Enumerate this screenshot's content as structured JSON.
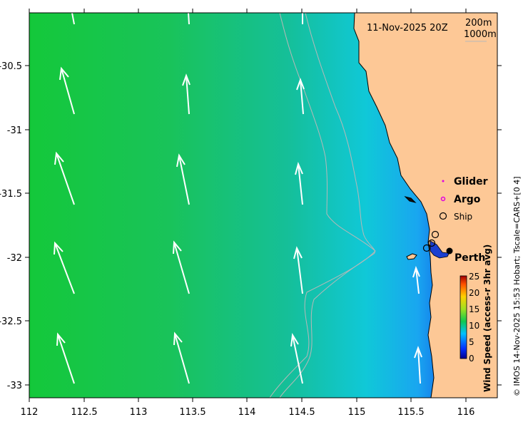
{
  "map": {
    "title": "11-Nov-2025 20Z",
    "contours": [
      "200m",
      "1000m"
    ],
    "x_ticks": [
      "112",
      "112.5",
      "113",
      "113.5",
      "114",
      "114.5",
      "115",
      "115.5",
      "116"
    ],
    "y_ticks": [
      "-30.5",
      "-31",
      "-31.5",
      "-32",
      "-32.5",
      "-33"
    ],
    "legend": {
      "glider": "Glider",
      "argo": "Argo",
      "ship": "Ship"
    },
    "city": "Perth",
    "colorbar": {
      "label": "Wind Speed (access-r 3hr avg)",
      "ticks": [
        "25",
        "20",
        "15",
        "10",
        "5",
        "0"
      ],
      "min": 0,
      "max": 25
    },
    "credit": "© IMOS 14-Nov-2025 15:53 Hobart; Tscale=CARS+[0 4]",
    "colors": {
      "land": "#fdc896",
      "ocean_deep": "#08c930",
      "ocean_shallow": "#0000b4"
    }
  }
}
